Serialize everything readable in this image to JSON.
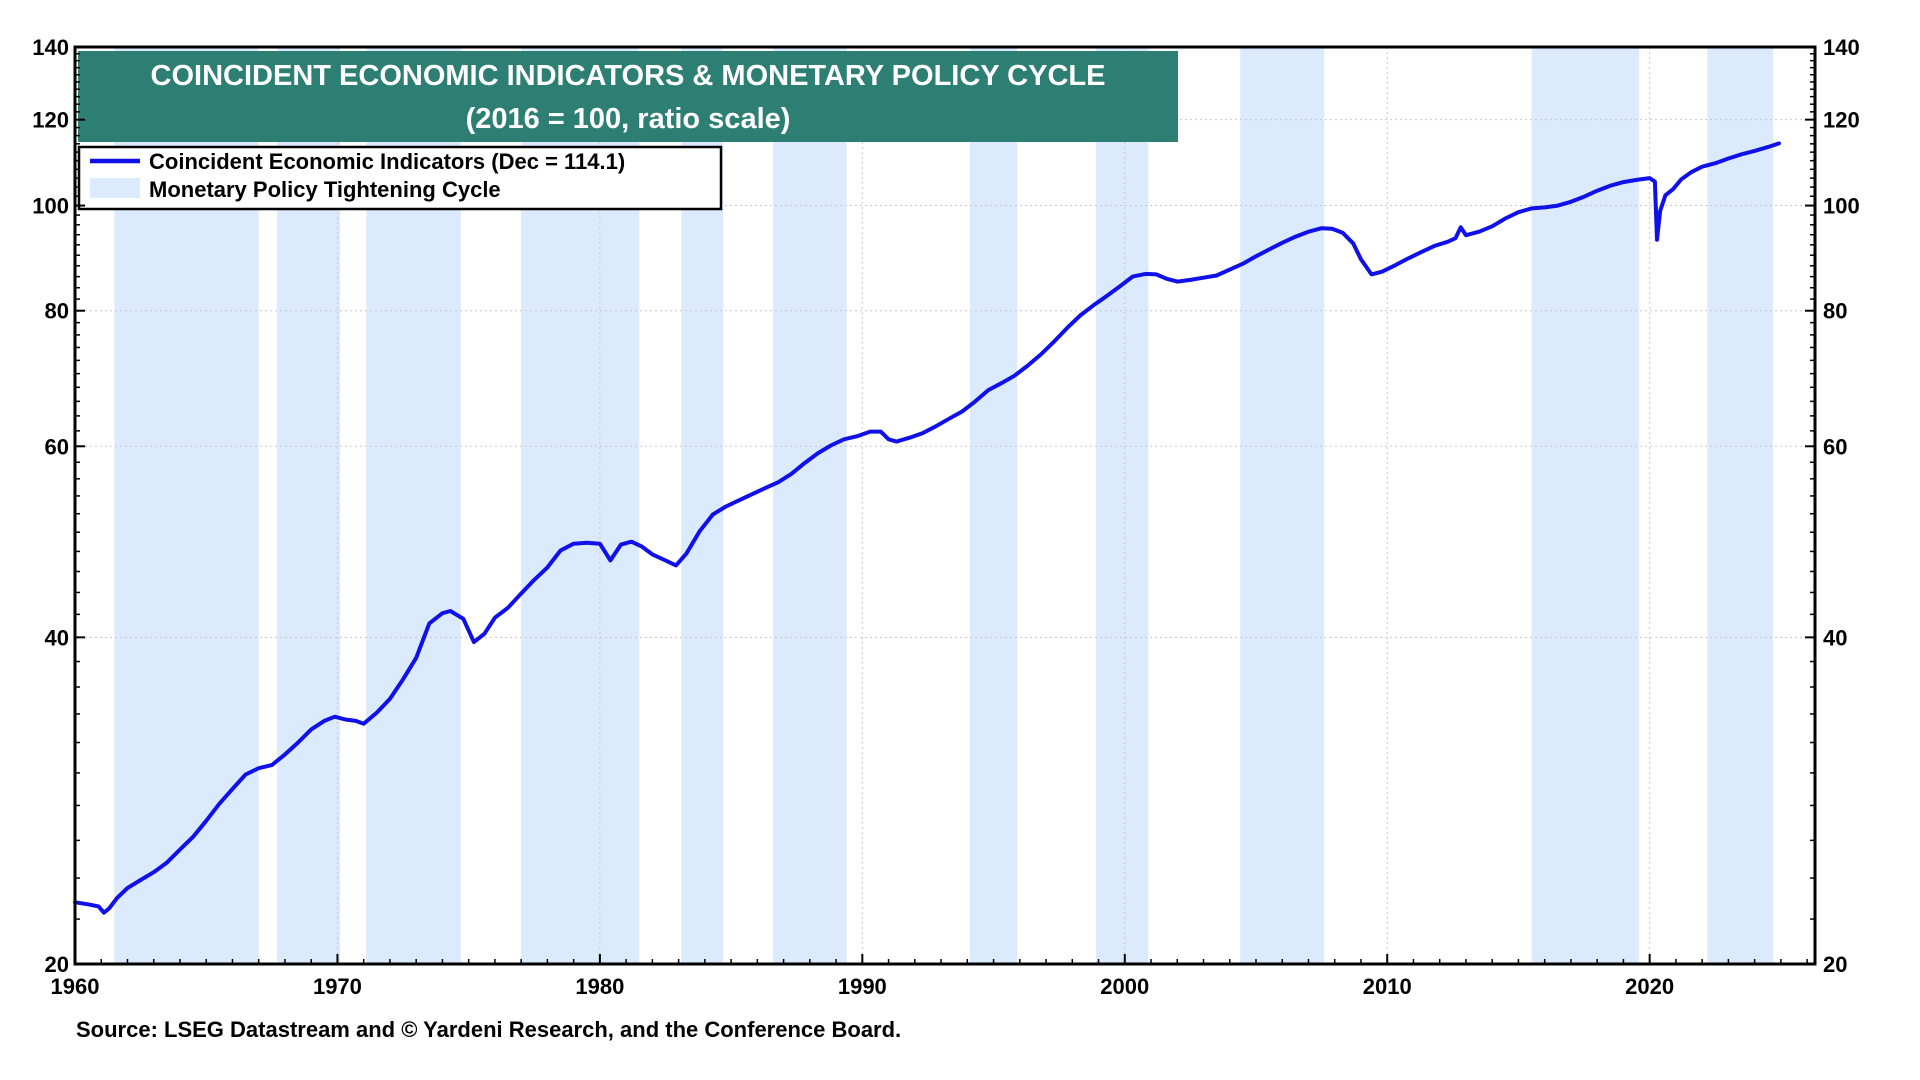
{
  "chart_data": {
    "type": "line",
    "title": "COINCIDENT ECONOMIC INDICATORS & MONETARY POLICY CYCLE",
    "subtitle": "(2016 = 100, ratio scale)",
    "source": "Source: LSEG Datastream and © Yardeni Research, and the Conference Board.",
    "y_scale": "log",
    "xlim": [
      1960,
      2026.3
    ],
    "ylim": [
      20,
      140
    ],
    "x_ticks": [
      1960,
      1970,
      1980,
      1990,
      2000,
      2010,
      2020
    ],
    "y_ticks": [
      20,
      40,
      60,
      80,
      100,
      120,
      140
    ],
    "y_minor_ticks": [
      22,
      24,
      26,
      28,
      30,
      32,
      34,
      36,
      38,
      42,
      44,
      46,
      48,
      50,
      52,
      54,
      56,
      58,
      62,
      64,
      66,
      68,
      70,
      72,
      74,
      76,
      78,
      82,
      84,
      86,
      88,
      90,
      92,
      94,
      96,
      98,
      102,
      104,
      106,
      108,
      110,
      112,
      114,
      116,
      118,
      122,
      124,
      126,
      128,
      130,
      132,
      134,
      136,
      138
    ],
    "grid": true,
    "legend": {
      "placement": "top-left",
      "line_label": "Coincident Economic Indicators (Dec  = 114.1)",
      "band_label": "Monetary Policy Tightening Cycle"
    },
    "colors": {
      "line": "#1010e8",
      "band": "#dbeafd",
      "title_bg": "#2e7f73",
      "grid": "#c8c8c8"
    },
    "tightening_cycles": [
      {
        "start": 1961.5,
        "end": 1967.0
      },
      {
        "start": 1967.7,
        "end": 1970.1
      },
      {
        "start": 1971.1,
        "end": 1974.7
      },
      {
        "start": 1977.0,
        "end": 1981.5
      },
      {
        "start": 1983.1,
        "end": 1984.7
      },
      {
        "start": 1986.6,
        "end": 1989.4
      },
      {
        "start": 1994.1,
        "end": 1995.9
      },
      {
        "start": 1998.9,
        "end": 2000.9
      },
      {
        "start": 2004.4,
        "end": 2007.6
      },
      {
        "start": 2015.5,
        "end": 2019.6
      },
      {
        "start": 2022.2,
        "end": 2024.7
      }
    ],
    "series": [
      {
        "name": "Coincident Economic Indicators",
        "points": [
          [
            1960.0,
            22.8
          ],
          [
            1960.5,
            22.7
          ],
          [
            1960.9,
            22.6
          ],
          [
            1961.1,
            22.3
          ],
          [
            1961.3,
            22.5
          ],
          [
            1961.6,
            23.0
          ],
          [
            1962.0,
            23.5
          ],
          [
            1962.5,
            23.9
          ],
          [
            1963.0,
            24.3
          ],
          [
            1963.5,
            24.8
          ],
          [
            1964.0,
            25.5
          ],
          [
            1964.5,
            26.2
          ],
          [
            1965.0,
            27.1
          ],
          [
            1965.5,
            28.1
          ],
          [
            1966.0,
            29.0
          ],
          [
            1966.5,
            29.9
          ],
          [
            1967.0,
            30.3
          ],
          [
            1967.5,
            30.5
          ],
          [
            1968.0,
            31.2
          ],
          [
            1968.5,
            32.0
          ],
          [
            1969.0,
            32.9
          ],
          [
            1969.5,
            33.5
          ],
          [
            1969.9,
            33.8
          ],
          [
            1970.3,
            33.6
          ],
          [
            1970.7,
            33.5
          ],
          [
            1971.0,
            33.3
          ],
          [
            1971.5,
            34.1
          ],
          [
            1972.0,
            35.1
          ],
          [
            1972.5,
            36.6
          ],
          [
            1973.0,
            38.3
          ],
          [
            1973.5,
            41.2
          ],
          [
            1974.0,
            42.1
          ],
          [
            1974.3,
            42.3
          ],
          [
            1974.8,
            41.6
          ],
          [
            1975.2,
            39.6
          ],
          [
            1975.6,
            40.3
          ],
          [
            1976.0,
            41.7
          ],
          [
            1976.5,
            42.6
          ],
          [
            1977.0,
            43.9
          ],
          [
            1977.5,
            45.2
          ],
          [
            1978.0,
            46.4
          ],
          [
            1978.5,
            48.1
          ],
          [
            1979.0,
            48.8
          ],
          [
            1979.5,
            48.9
          ],
          [
            1980.0,
            48.8
          ],
          [
            1980.4,
            47.1
          ],
          [
            1980.8,
            48.7
          ],
          [
            1981.2,
            49.0
          ],
          [
            1981.6,
            48.5
          ],
          [
            1982.0,
            47.7
          ],
          [
            1982.5,
            47.1
          ],
          [
            1982.9,
            46.6
          ],
          [
            1983.3,
            47.8
          ],
          [
            1983.8,
            50.1
          ],
          [
            1984.3,
            51.9
          ],
          [
            1984.8,
            52.8
          ],
          [
            1985.3,
            53.5
          ],
          [
            1985.8,
            54.2
          ],
          [
            1986.3,
            54.9
          ],
          [
            1986.8,
            55.6
          ],
          [
            1987.3,
            56.6
          ],
          [
            1987.8,
            57.9
          ],
          [
            1988.3,
            59.1
          ],
          [
            1988.8,
            60.1
          ],
          [
            1989.3,
            60.9
          ],
          [
            1989.8,
            61.3
          ],
          [
            1990.3,
            61.9
          ],
          [
            1990.7,
            61.9
          ],
          [
            1991.0,
            60.9
          ],
          [
            1991.3,
            60.6
          ],
          [
            1991.8,
            61.1
          ],
          [
            1992.3,
            61.7
          ],
          [
            1992.8,
            62.6
          ],
          [
            1993.3,
            63.6
          ],
          [
            1993.8,
            64.6
          ],
          [
            1994.3,
            66.0
          ],
          [
            1994.8,
            67.6
          ],
          [
            1995.3,
            68.6
          ],
          [
            1995.8,
            69.7
          ],
          [
            1996.3,
            71.2
          ],
          [
            1996.8,
            72.9
          ],
          [
            1997.3,
            74.9
          ],
          [
            1997.8,
            77.1
          ],
          [
            1998.3,
            79.2
          ],
          [
            1998.8,
            80.9
          ],
          [
            1999.3,
            82.5
          ],
          [
            1999.8,
            84.2
          ],
          [
            2000.3,
            86.0
          ],
          [
            2000.8,
            86.5
          ],
          [
            2001.2,
            86.4
          ],
          [
            2001.6,
            85.6
          ],
          [
            2002.0,
            85.1
          ],
          [
            2002.5,
            85.4
          ],
          [
            2003.0,
            85.8
          ],
          [
            2003.5,
            86.2
          ],
          [
            2004.0,
            87.3
          ],
          [
            2004.5,
            88.4
          ],
          [
            2005.0,
            89.8
          ],
          [
            2005.5,
            91.1
          ],
          [
            2006.0,
            92.4
          ],
          [
            2006.5,
            93.6
          ],
          [
            2007.0,
            94.6
          ],
          [
            2007.5,
            95.3
          ],
          [
            2007.9,
            95.2
          ],
          [
            2008.3,
            94.4
          ],
          [
            2008.7,
            92.3
          ],
          [
            2009.0,
            89.2
          ],
          [
            2009.4,
            86.4
          ],
          [
            2009.8,
            86.9
          ],
          [
            2010.3,
            88.1
          ],
          [
            2010.8,
            89.4
          ],
          [
            2011.3,
            90.6
          ],
          [
            2011.8,
            91.8
          ],
          [
            2012.3,
            92.6
          ],
          [
            2012.6,
            93.3
          ],
          [
            2012.8,
            95.5
          ],
          [
            2013.0,
            93.9
          ],
          [
            2013.5,
            94.6
          ],
          [
            2014.0,
            95.7
          ],
          [
            2014.5,
            97.3
          ],
          [
            2015.0,
            98.6
          ],
          [
            2015.5,
            99.4
          ],
          [
            2016.0,
            99.6
          ],
          [
            2016.5,
            100.0
          ],
          [
            2017.0,
            100.8
          ],
          [
            2017.5,
            101.9
          ],
          [
            2018.0,
            103.2
          ],
          [
            2018.5,
            104.3
          ],
          [
            2019.0,
            105.1
          ],
          [
            2019.5,
            105.6
          ],
          [
            2020.0,
            106.0
          ],
          [
            2020.2,
            105.2
          ],
          [
            2020.28,
            93.0
          ],
          [
            2020.4,
            98.9
          ],
          [
            2020.6,
            102.2
          ],
          [
            2020.9,
            103.6
          ],
          [
            2021.2,
            105.7
          ],
          [
            2021.6,
            107.4
          ],
          [
            2022.0,
            108.6
          ],
          [
            2022.5,
            109.4
          ],
          [
            2023.0,
            110.5
          ],
          [
            2023.5,
            111.5
          ],
          [
            2024.0,
            112.3
          ],
          [
            2024.5,
            113.2
          ],
          [
            2024.93,
            114.1
          ]
        ]
      }
    ]
  }
}
